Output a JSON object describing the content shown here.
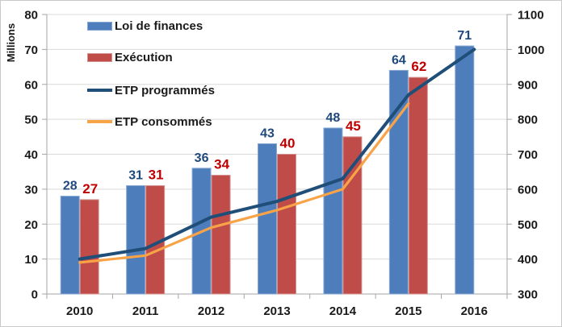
{
  "chart_data": {
    "type": "combo-bar-line",
    "categories": [
      "2010",
      "2011",
      "2012",
      "2013",
      "2014",
      "2015",
      "2016"
    ],
    "left_axis": {
      "title": "Millions",
      "min": 0,
      "max": 80,
      "step": 10
    },
    "right_axis": {
      "min": 300,
      "max": 1100,
      "step": 100
    },
    "grid": true,
    "legend_position": "top-left",
    "series": [
      {
        "name": "Loi de finances",
        "kind": "bar",
        "axis": "left",
        "color": "#4D7EBB",
        "border_color": "#86A7D3",
        "label_color": "#1F497D",
        "label_size": 16,
        "values": [
          28,
          31,
          36,
          43,
          47.5,
          64,
          71
        ],
        "labels": [
          "28",
          "31",
          "36",
          "43",
          "48",
          "64",
          "71"
        ]
      },
      {
        "name": "Exécution",
        "kind": "bar",
        "axis": "left",
        "color": "#BF4C49",
        "border_color": "#D59390",
        "label_color": "#C00000",
        "label_size": 17,
        "values": [
          27,
          31,
          34,
          40,
          45,
          62,
          null
        ],
        "labels": [
          "27",
          "31",
          "34",
          "40",
          "45",
          "62",
          null
        ]
      },
      {
        "name": "ETP programmés",
        "kind": "line",
        "axis": "right",
        "color": "#1F4E79",
        "stroke_width": 4,
        "values": [
          400,
          430,
          520,
          565,
          630,
          870,
          1000
        ]
      },
      {
        "name": "ETP consommés",
        "kind": "line",
        "axis": "right",
        "color": "#F9A348",
        "stroke_width": 3.2,
        "values": [
          390,
          410,
          490,
          540,
          600,
          845,
          null
        ]
      }
    ],
    "colors": {
      "gridline": "#D9D9D9",
      "axis_line": "#A6A6A6",
      "tick_text": "#1A1A1A"
    }
  }
}
